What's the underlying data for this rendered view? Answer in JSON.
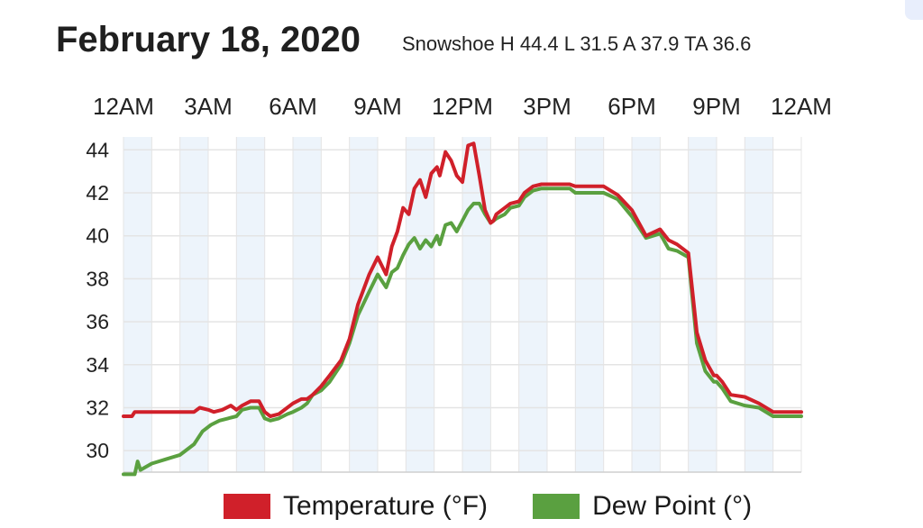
{
  "header": {
    "date": "February 18, 2020",
    "summary": "Snowshoe H 44.4 L 31.5 A 37.9 TA 36.6"
  },
  "legend": {
    "temperature_label": "Temperature (°F)",
    "dewpoint_label": "Dew Point (°)"
  },
  "colors": {
    "temperature": "#d0202a",
    "dewpoint": "#5aa040",
    "band": "#edf4fb",
    "grid": "#e4e4e4"
  },
  "chart_data": {
    "type": "line",
    "x_unit": "hour",
    "xlim": [
      0,
      24
    ],
    "ylim": [
      29,
      44.6
    ],
    "x_ticks": [
      {
        "x": 0,
        "label": "12AM"
      },
      {
        "x": 3,
        "label": "3AM"
      },
      {
        "x": 6,
        "label": "6AM"
      },
      {
        "x": 9,
        "label": "9AM"
      },
      {
        "x": 12,
        "label": "12PM"
      },
      {
        "x": 15,
        "label": "3PM"
      },
      {
        "x": 18,
        "label": "6PM"
      },
      {
        "x": 21,
        "label": "9PM"
      },
      {
        "x": 24,
        "label": "12AM"
      }
    ],
    "y_ticks": [
      30,
      32,
      34,
      36,
      38,
      40,
      42,
      44
    ],
    "series": [
      {
        "name": "Temperature (°F)",
        "x": [
          0,
          0.3,
          0.4,
          1,
          2,
          2.5,
          2.7,
          3,
          3.2,
          3.5,
          3.8,
          4,
          4.2,
          4.5,
          4.8,
          5,
          5.2,
          5.5,
          5.8,
          6,
          6.3,
          6.5,
          6.7,
          7,
          7.3,
          7.7,
          8,
          8.3,
          8.7,
          9,
          9.3,
          9.5,
          9.7,
          9.9,
          10.1,
          10.3,
          10.5,
          10.7,
          10.9,
          11.1,
          11.2,
          11.4,
          11.6,
          11.8,
          12,
          12.2,
          12.4,
          12.6,
          12.8,
          13,
          13.1,
          13.2,
          13.5,
          13.7,
          14,
          14.2,
          14.5,
          14.8,
          15,
          15.5,
          15.8,
          16,
          16.5,
          17,
          17.5,
          18,
          18.5,
          19,
          19.3,
          19.6,
          20,
          20.3,
          20.6,
          20.9,
          21,
          21.2,
          21.5,
          22,
          22.5,
          23,
          24
        ],
        "values": [
          31.6,
          31.6,
          31.8,
          31.8,
          31.8,
          31.8,
          32.0,
          31.9,
          31.8,
          31.9,
          32.1,
          31.9,
          32.1,
          32.3,
          32.3,
          31.8,
          31.6,
          31.7,
          32.0,
          32.2,
          32.4,
          32.4,
          32.6,
          33.0,
          33.5,
          34.2,
          35.2,
          36.8,
          38.2,
          39.0,
          38.2,
          39.5,
          40.2,
          41.3,
          41.0,
          42.2,
          42.6,
          41.8,
          42.9,
          43.2,
          42.8,
          43.9,
          43.5,
          42.8,
          42.5,
          44.2,
          44.3,
          42.8,
          41.2,
          40.6,
          40.7,
          41.0,
          41.3,
          41.5,
          41.6,
          42.0,
          42.3,
          42.4,
          42.4,
          42.4,
          42.4,
          42.3,
          42.3,
          42.3,
          41.9,
          41.2,
          40.0,
          40.3,
          39.8,
          39.6,
          39.2,
          35.5,
          34.2,
          33.5,
          33.5,
          33.2,
          32.6,
          32.5,
          32.2,
          31.8,
          31.8
        ]
      },
      {
        "name": "Dew Point (°)",
        "x": [
          0,
          0.4,
          0.5,
          0.6,
          1,
          1.5,
          2,
          2.5,
          2.8,
          3.1,
          3.4,
          3.7,
          4,
          4.2,
          4.5,
          4.8,
          5,
          5.2,
          5.5,
          5.8,
          6,
          6.3,
          6.5,
          6.7,
          7,
          7.3,
          7.7,
          8,
          8.3,
          8.7,
          9,
          9.3,
          9.5,
          9.7,
          9.9,
          10.1,
          10.3,
          10.5,
          10.7,
          10.9,
          11.1,
          11.2,
          11.4,
          11.6,
          11.8,
          12,
          12.2,
          12.4,
          12.6,
          12.8,
          13,
          13.2,
          13.5,
          13.7,
          14,
          14.2,
          14.5,
          14.8,
          15,
          15.5,
          15.8,
          16,
          16.5,
          17,
          17.5,
          18,
          18.5,
          19,
          19.3,
          19.6,
          20,
          20.3,
          20.6,
          20.9,
          21,
          21.2,
          21.5,
          22,
          22.5,
          23,
          24
        ],
        "values": [
          28.9,
          28.9,
          29.5,
          29.1,
          29.4,
          29.6,
          29.8,
          30.3,
          30.9,
          31.2,
          31.4,
          31.5,
          31.6,
          31.9,
          32.0,
          32.0,
          31.5,
          31.4,
          31.5,
          31.7,
          31.8,
          32.0,
          32.2,
          32.6,
          32.8,
          33.2,
          34.0,
          35.0,
          36.3,
          37.4,
          38.2,
          37.6,
          38.3,
          38.5,
          39.1,
          39.6,
          39.9,
          39.4,
          39.8,
          39.5,
          40.0,
          39.6,
          40.5,
          40.6,
          40.2,
          40.7,
          41.2,
          41.5,
          41.5,
          41.0,
          40.6,
          40.8,
          41.0,
          41.3,
          41.4,
          41.8,
          42.1,
          42.2,
          42.2,
          42.2,
          42.2,
          42.0,
          42.0,
          42.0,
          41.7,
          40.9,
          39.9,
          40.1,
          39.4,
          39.3,
          39.0,
          35.0,
          33.7,
          33.2,
          33.2,
          32.9,
          32.3,
          32.1,
          32.0,
          31.6,
          31.6
        ]
      }
    ]
  }
}
